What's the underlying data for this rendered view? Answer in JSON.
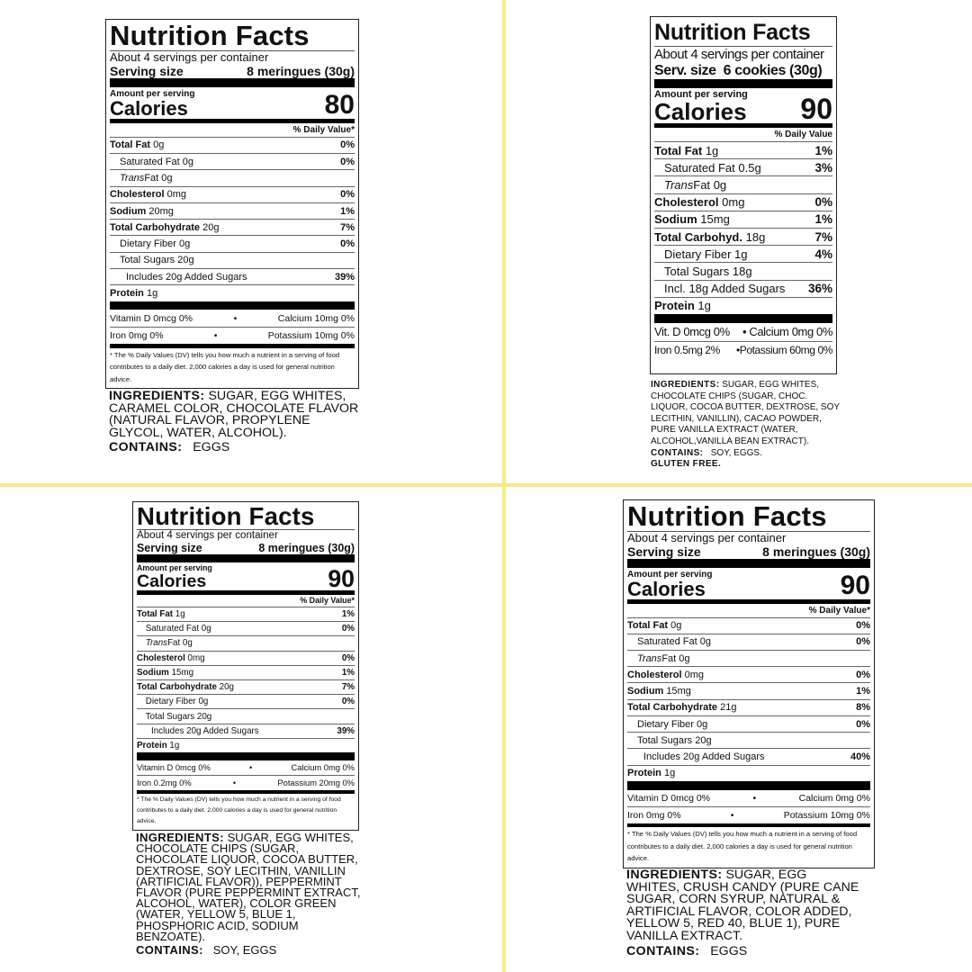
{
  "colors": {
    "divider": "#f6ea8c",
    "ink": "#111111"
  },
  "labels": [
    {
      "title": "Nutrition Facts",
      "servings": "About 4 servings per container",
      "serving_label": "Serving size",
      "serving_value": "8 meringues (30g)",
      "amount_label": "Amount per serving",
      "calories_label": "Calories",
      "calories_value": "80",
      "dv_header": "% Daily Value*",
      "nutrients": [
        {
          "name": "Total Fat",
          "amount": "0g",
          "pct": "0%",
          "bold": true,
          "indent": 0
        },
        {
          "name": "Saturated Fat",
          "amount": "0g",
          "pct": "0%",
          "bold": false,
          "indent": 1
        },
        {
          "italic": "Trans",
          "name": "Fat",
          "amount": "0g",
          "pct": "",
          "bold": false,
          "indent": 1
        },
        {
          "name": "Cholesterol",
          "amount": "0mg",
          "pct": "0%",
          "bold": true,
          "indent": 0
        },
        {
          "name": "Sodium",
          "amount": "20mg",
          "pct": "1%",
          "bold": true,
          "indent": 0
        },
        {
          "name": "Total Carbohydrate",
          "amount": "20g",
          "pct": "7%",
          "bold": true,
          "indent": 0
        },
        {
          "name": "Dietary Fiber",
          "amount": "0g",
          "pct": "0%",
          "bold": false,
          "indent": 1
        },
        {
          "name": "Total Sugars",
          "amount": "20g",
          "pct": "",
          "bold": false,
          "indent": 1
        },
        {
          "name": "Includes 20g Added Sugars",
          "amount": "",
          "pct": "39%",
          "bold": false,
          "indent": 2
        },
        {
          "name": "Protein",
          "amount": "1g",
          "pct": "",
          "bold": true,
          "indent": 0
        }
      ],
      "vitamins": [
        {
          "left": "Vitamin D 0mcg 0%",
          "right": "Calcium 10mg 0%"
        },
        {
          "left": "Iron 0mg 0%",
          "right": "Potassium 10mg 0%"
        }
      ],
      "footnote": "* The % Daily Values (DV) tells you how much a nutrient in a serving of food contributes to a daily diet. 2,000 calories a day is used for general nutrition advice.",
      "ingredients_label": "INGREDIENTS:",
      "ingredients": "SUGAR, EGG WHITES, CARAMEL COLOR, CHOCOLATE FLAVOR (NATURAL FLAVOR, PROPYLENE GLYCOL, WATER, ALCOHOL).",
      "contains_label": "CONTAINS:",
      "contains": "EGGS",
      "extra": ""
    },
    {
      "title": "Nutrition Facts",
      "servings": "About 4 servings per container",
      "serving_label": "Serv. size",
      "serving_value": "6 cookies (30g)",
      "amount_label": "Amount per serving",
      "calories_label": "Calories",
      "calories_value": "90",
      "dv_header": "% Daily Value",
      "nutrients": [
        {
          "name": "Total Fat",
          "amount": "1g",
          "pct": "1%",
          "bold": true,
          "indent": 0
        },
        {
          "name": "Saturated Fat",
          "amount": "0.5g",
          "pct": "3%",
          "bold": false,
          "indent": 1
        },
        {
          "italic": "Trans",
          "name": "Fat",
          "amount": "0g",
          "pct": "",
          "bold": false,
          "indent": 1
        },
        {
          "name": "Cholesterol",
          "amount": "0mg",
          "pct": "0%",
          "bold": true,
          "indent": 0
        },
        {
          "name": "Sodium",
          "amount": "15mg",
          "pct": "1%",
          "bold": true,
          "indent": 0
        },
        {
          "name": "Total Carbohyd.",
          "amount": "18g",
          "pct": "7%",
          "bold": true,
          "indent": 0
        },
        {
          "name": "Dietary Fiber",
          "amount": "1g",
          "pct": "4%",
          "bold": false,
          "indent": 1
        },
        {
          "name": "Total Sugars",
          "amount": "18g",
          "pct": "",
          "bold": false,
          "indent": 1
        },
        {
          "name": "Incl. 18g Added Sugars",
          "amount": "",
          "pct": "36%",
          "bold": false,
          "indent": 1
        },
        {
          "name": "Protein",
          "amount": "1g",
          "pct": "",
          "bold": true,
          "indent": 0
        }
      ],
      "vitamins": [
        {
          "left": "Vit. D 0mcg 0%",
          "right": "• Calcium 0mg 0%"
        },
        {
          "left": "Iron 0.5mg 2%",
          "right": "•Potassium 60mg 0%"
        }
      ],
      "footnote": "",
      "ingredients_label": "INGREDIENTS:",
      "ingredients": "SUGAR, EGG WHITES, CHOCOLATE CHIPS (SUGAR, CHOC. LIQUOR, COCOA BUTTER, DEXTROSE, SOY LECITHIN, VANILLIN), CACAO POWDER, PURE VANILLA EXTRACT (WATER, ALCOHOL,VANILLA BEAN EXTRACT).",
      "contains_label": "CONTAINS:",
      "contains": "SOY, EGGS.",
      "extra": "GLUTEN FREE."
    },
    {
      "title": "Nutrition Facts",
      "servings": "About 4 servings per container",
      "serving_label": "Serving size",
      "serving_value": "8 meringues (30g)",
      "amount_label": "Amount per serving",
      "calories_label": "Calories",
      "calories_value": "90",
      "dv_header": "% Daily Value*",
      "nutrients": [
        {
          "name": "Total Fat",
          "amount": "1g",
          "pct": "1%",
          "bold": true,
          "indent": 0
        },
        {
          "name": "Saturated Fat",
          "amount": "0g",
          "pct": "0%",
          "bold": false,
          "indent": 1
        },
        {
          "italic": "Trans",
          "name": "Fat",
          "amount": "0g",
          "pct": "",
          "bold": false,
          "indent": 1
        },
        {
          "name": "Cholesterol",
          "amount": "0mg",
          "pct": "0%",
          "bold": true,
          "indent": 0
        },
        {
          "name": "Sodium",
          "amount": "15mg",
          "pct": "1%",
          "bold": true,
          "indent": 0
        },
        {
          "name": "Total Carbohydrate",
          "amount": "20g",
          "pct": "7%",
          "bold": true,
          "indent": 0
        },
        {
          "name": "Dietary Fiber",
          "amount": "0g",
          "pct": "0%",
          "bold": false,
          "indent": 1
        },
        {
          "name": "Total Sugars",
          "amount": "20g",
          "pct": "",
          "bold": false,
          "indent": 1
        },
        {
          "name": "Includes 20g Added Sugars",
          "amount": "",
          "pct": "39%",
          "bold": false,
          "indent": 2
        },
        {
          "name": "Protein",
          "amount": "1g",
          "pct": "",
          "bold": true,
          "indent": 0
        }
      ],
      "vitamins": [
        {
          "left": "Vitamin D 0mcg 0%",
          "right": "Calcium 0mg 0%"
        },
        {
          "left": "Iron 0.2mg 0%",
          "right": "Potassium 20mg 0%"
        }
      ],
      "footnote": "* The % Daily Values (DV) tells you how much a nutrient in a serving of food contributes to a daily diet. 2,000 calories a day is used for general nutrition advice.",
      "ingredients_label": "INGREDIENTS:",
      "ingredients": "SUGAR, EGG WHITES, CHOCOLATE CHIPS (SUGAR, CHOCOLATE LIQUOR, COCOA BUTTER, DEXTROSE, SOY LECITHIN, VANILLIN (ARTIFICIAL FLAVOR)), PEPPERMINT FLAVOR (PURE PEPPERMINT EXTRACT, ALCOHOL, WATER), COLOR GREEN (WATER, YELLOW 5, BLUE 1, PHOSPHORIC ACID, SODIUM BENZOATE).",
      "contains_label": "CONTAINS:",
      "contains": "SOY, EGGS",
      "extra": ""
    },
    {
      "title": "Nutrition Facts",
      "servings": "About 4 servings per container",
      "serving_label": "Serving size",
      "serving_value": "8 meringues (30g)",
      "amount_label": "Amount per serving",
      "calories_label": "Calories",
      "calories_value": "90",
      "dv_header": "% Daily Value*",
      "nutrients": [
        {
          "name": "Total Fat",
          "amount": "0g",
          "pct": "0%",
          "bold": true,
          "indent": 0
        },
        {
          "name": "Saturated Fat",
          "amount": "0g",
          "pct": "0%",
          "bold": false,
          "indent": 1
        },
        {
          "italic": "Trans",
          "name": "Fat",
          "amount": "0g",
          "pct": "",
          "bold": false,
          "indent": 1
        },
        {
          "name": "Cholesterol",
          "amount": "0mg",
          "pct": "0%",
          "bold": true,
          "indent": 0
        },
        {
          "name": "Sodium",
          "amount": "15mg",
          "pct": "1%",
          "bold": true,
          "indent": 0
        },
        {
          "name": "Total Carbohydrate",
          "amount": "21g",
          "pct": "8%",
          "bold": true,
          "indent": 0
        },
        {
          "name": "Dietary Fiber",
          "amount": "0g",
          "pct": "0%",
          "bold": false,
          "indent": 1
        },
        {
          "name": "Total Sugars",
          "amount": "20g",
          "pct": "",
          "bold": false,
          "indent": 1
        },
        {
          "name": "Includes 20g Added Sugars",
          "amount": "",
          "pct": "40%",
          "bold": false,
          "indent": 2
        },
        {
          "name": "Protein",
          "amount": "1g",
          "pct": "",
          "bold": true,
          "indent": 0
        }
      ],
      "vitamins": [
        {
          "left": "Vitamin D 0mcg 0%",
          "right": "Calcium 0mg 0%"
        },
        {
          "left": "Iron 0mg 0%",
          "right": "Potassium 10mg 0%"
        }
      ],
      "footnote": "* The % Daily Values (DV) tells you how much a nutrient in a serving of food contributes to a daily diet. 2,000 calories a day is used for general nutrition advice.",
      "ingredients_label": "INGREDIENTS:",
      "ingredients": "SUGAR, EGG WHITES, CRUSH CANDY (PURE CANE SUGAR, CORN SYRUP, NATURAL & ARTIFICIAL FLAVOR, COLOR ADDED, YELLOW 5, RED 40, BLUE 1), PURE VANILLA EXTRACT.",
      "contains_label": "CONTAINS:",
      "contains": "EGGS",
      "extra": ""
    }
  ]
}
